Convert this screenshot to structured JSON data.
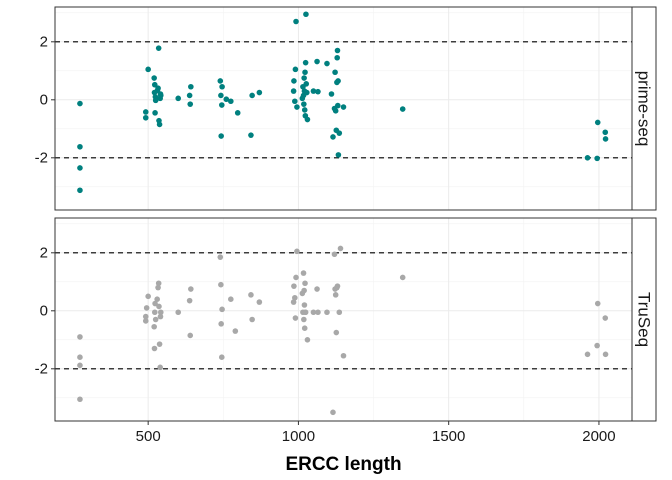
{
  "chart_data": {
    "type": "scatter",
    "xlabel": "ERCC length",
    "x_ticks": [
      500,
      1000,
      1500,
      2000
    ],
    "x_tick_labels": [
      "500",
      "1000",
      "1500",
      "2000"
    ],
    "y_ticks": [
      -2,
      0,
      2
    ],
    "y_tick_labels": [
      "-2",
      "0",
      "2"
    ],
    "xlim": [
      190,
      2110
    ],
    "ylim": [
      -3.8,
      3.2
    ],
    "reference_lines": [
      -2,
      2
    ],
    "grid": true,
    "legend": "none",
    "panels": [
      {
        "label": "prime-seq",
        "color": "#00807f",
        "points": [
          [
            273,
            -0.13
          ],
          [
            273,
            -1.62
          ],
          [
            273,
            -2.35
          ],
          [
            273,
            -3.12
          ],
          [
            492,
            -0.42
          ],
          [
            492,
            -0.62
          ],
          [
            500,
            1.05
          ],
          [
            520,
            0.75
          ],
          [
            521,
            0.25
          ],
          [
            522,
            0.52
          ],
          [
            523,
            -0.45
          ],
          [
            524,
            0.1
          ],
          [
            525,
            -0.02
          ],
          [
            531,
            0.32
          ],
          [
            533,
            0.4
          ],
          [
            535,
            1.78
          ],
          [
            536,
            -0.72
          ],
          [
            538,
            -0.85
          ],
          [
            540,
            0.05
          ],
          [
            541,
            0.2
          ],
          [
            542,
            0.15
          ],
          [
            600,
            0.05
          ],
          [
            638,
            0.15
          ],
          [
            640,
            -0.15
          ],
          [
            642,
            0.45
          ],
          [
            740,
            0.65
          ],
          [
            742,
            0.15
          ],
          [
            743,
            -1.25
          ],
          [
            745,
            -0.18
          ],
          [
            746,
            0.45
          ],
          [
            760,
            0.02
          ],
          [
            775,
            -0.05
          ],
          [
            798,
            -0.45
          ],
          [
            842,
            -1.22
          ],
          [
            846,
            0.15
          ],
          [
            870,
            0.25
          ],
          [
            984,
            0.3
          ],
          [
            985,
            0.65
          ],
          [
            988,
            -0.05
          ],
          [
            990,
            1.05
          ],
          [
            992,
            2.7
          ],
          [
            995,
            -0.25
          ],
          [
            1013,
            0.05
          ],
          [
            1015,
            0.45
          ],
          [
            1017,
            0.15
          ],
          [
            1018,
            -0.15
          ],
          [
            1019,
            0.75
          ],
          [
            1020,
            0.3
          ],
          [
            1021,
            -0.35
          ],
          [
            1022,
            0.95
          ],
          [
            1023,
            -0.55
          ],
          [
            1024,
            1.28
          ],
          [
            1025,
            2.95
          ],
          [
            1026,
            0.55
          ],
          [
            1028,
            0.25
          ],
          [
            1030,
            -0.68
          ],
          [
            1050,
            0.3
          ],
          [
            1062,
            1.32
          ],
          [
            1065,
            0.28
          ],
          [
            1095,
            1.25
          ],
          [
            1110,
            0.2
          ],
          [
            1115,
            -1.28
          ],
          [
            1120,
            -0.3
          ],
          [
            1122,
            0.95
          ],
          [
            1124,
            -0.38
          ],
          [
            1126,
            -1.05
          ],
          [
            1128,
            0.6
          ],
          [
            1129,
            1.45
          ],
          [
            1130,
            1.7
          ],
          [
            1131,
            -0.2
          ],
          [
            1132,
            0.65
          ],
          [
            1133,
            -1.9
          ],
          [
            1136,
            -1.15
          ],
          [
            1150,
            -0.25
          ],
          [
            1347,
            -0.32
          ],
          [
            1962,
            -2.0
          ],
          [
            1994,
            -2.02
          ],
          [
            1996,
            -0.78
          ],
          [
            2021,
            -1.12
          ],
          [
            2022,
            -1.35
          ]
        ]
      },
      {
        "label": "TruSeq",
        "color": "#a8a8a8",
        "points": [
          [
            273,
            -0.9
          ],
          [
            273,
            -1.6
          ],
          [
            273,
            -1.88
          ],
          [
            273,
            -3.05
          ],
          [
            492,
            -0.2
          ],
          [
            492,
            -0.35
          ],
          [
            495,
            0.1
          ],
          [
            500,
            0.5
          ],
          [
            520,
            -0.55
          ],
          [
            521,
            -1.3
          ],
          [
            522,
            -0.05
          ],
          [
            523,
            0.25
          ],
          [
            525,
            -0.3
          ],
          [
            530,
            0.4
          ],
          [
            533,
            0.8
          ],
          [
            535,
            0.95
          ],
          [
            536,
            0.15
          ],
          [
            538,
            -1.15
          ],
          [
            540,
            -1.95
          ],
          [
            541,
            -0.2
          ],
          [
            542,
            -0.05
          ],
          [
            600,
            -0.05
          ],
          [
            638,
            0.35
          ],
          [
            640,
            -0.85
          ],
          [
            642,
            0.75
          ],
          [
            740,
            1.85
          ],
          [
            742,
            0.9
          ],
          [
            743,
            -0.45
          ],
          [
            745,
            -1.6
          ],
          [
            746,
            0.05
          ],
          [
            775,
            0.4
          ],
          [
            790,
            -0.7
          ],
          [
            842,
            0.55
          ],
          [
            846,
            -0.3
          ],
          [
            870,
            0.3
          ],
          [
            984,
            0.3
          ],
          [
            985,
            0.85
          ],
          [
            988,
            0.45
          ],
          [
            990,
            -0.25
          ],
          [
            992,
            1.15
          ],
          [
            995,
            2.05
          ],
          [
            1013,
            0.6
          ],
          [
            1015,
            -0.05
          ],
          [
            1017,
            1.3
          ],
          [
            1018,
            -0.3
          ],
          [
            1019,
            0.7
          ],
          [
            1020,
            0.2
          ],
          [
            1021,
            -0.6
          ],
          [
            1022,
            0.95
          ],
          [
            1023,
            -0.05
          ],
          [
            1024,
            -0.05
          ],
          [
            1030,
            -1.0
          ],
          [
            1050,
            -0.05
          ],
          [
            1062,
            0.75
          ],
          [
            1065,
            -0.05
          ],
          [
            1095,
            -0.05
          ],
          [
            1115,
            -3.5
          ],
          [
            1120,
            1.95
          ],
          [
            1122,
            0.75
          ],
          [
            1124,
            0.55
          ],
          [
            1126,
            -0.75
          ],
          [
            1128,
            0.8
          ],
          [
            1130,
            0.85
          ],
          [
            1136,
            -0.05
          ],
          [
            1140,
            2.15
          ],
          [
            1150,
            -1.55
          ],
          [
            1347,
            1.15
          ],
          [
            1962,
            -1.5
          ],
          [
            1994,
            -1.2
          ],
          [
            1996,
            0.25
          ],
          [
            2021,
            -0.25
          ],
          [
            2022,
            -1.5
          ]
        ]
      }
    ]
  }
}
